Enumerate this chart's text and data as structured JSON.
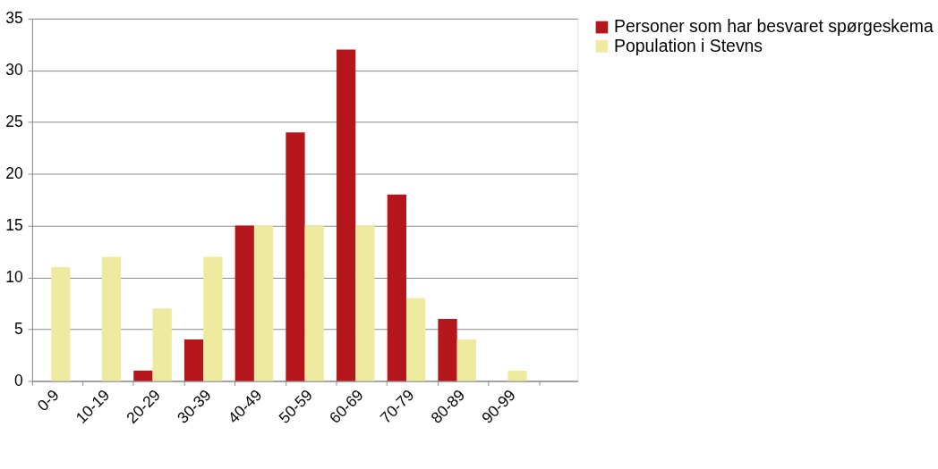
{
  "chart_data": {
    "type": "bar",
    "categories": [
      "0-9",
      "10-19",
      "20-29",
      "30-39",
      "40-49",
      "50-59",
      "60-69",
      "70-79",
      "80-89",
      "90-99",
      null
    ],
    "series": [
      {
        "name": "Personer som har besvaret spørgeskema",
        "color": "#b5161b",
        "values": [
          0,
          0,
          1,
          4,
          15,
          24,
          32,
          18,
          6,
          0,
          null
        ]
      },
      {
        "name": "Population i Stevns",
        "color": "#eeeaa0",
        "values": [
          11,
          12,
          7,
          12,
          15,
          15,
          15,
          8,
          4,
          1,
          null
        ]
      }
    ],
    "ylim": [
      0,
      35
    ],
    "yticks": [
      0,
      5,
      10,
      15,
      20,
      25,
      30,
      35
    ],
    "grid": "y",
    "legend": "right"
  }
}
